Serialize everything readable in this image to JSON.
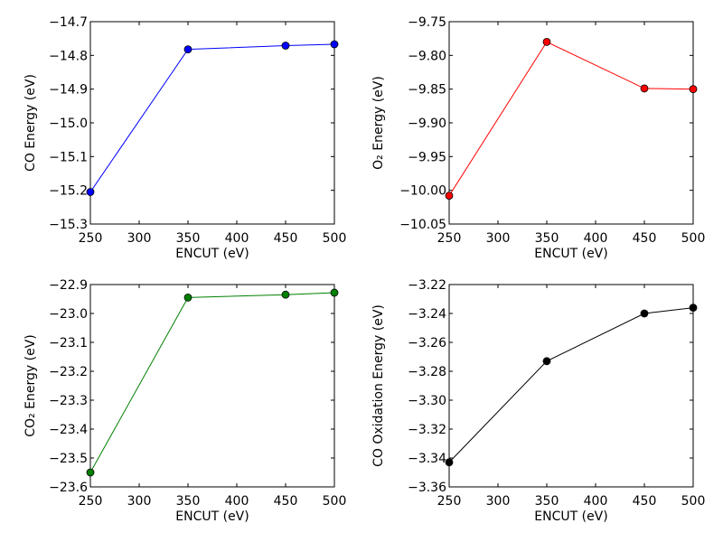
{
  "figure": {
    "background": "#ffffff"
  },
  "chart_data": [
    {
      "type": "line",
      "ylabel": "CO Energy (eV)",
      "xlabel": "ENCUT (eV)",
      "color": "#0000ff",
      "x": [
        250,
        350,
        450,
        500
      ],
      "y": [
        -15.205,
        -14.782,
        -14.771,
        -14.767
      ],
      "xlim": [
        250,
        500
      ],
      "ylim": [
        -15.3,
        -14.7
      ],
      "xticks": [
        "250",
        "300",
        "350",
        "400",
        "450",
        "500"
      ],
      "yticks": [
        "−15.3",
        "−15.2",
        "−15.1",
        "−15.0",
        "−14.9",
        "−14.8",
        "−14.7"
      ],
      "grid": false
    },
    {
      "type": "line",
      "ylabel": "O₂ Energy (eV)",
      "xlabel": "ENCUT (eV)",
      "color": "#ff0000",
      "x": [
        250,
        350,
        450,
        500
      ],
      "y": [
        -10.008,
        -9.78,
        -9.849,
        -9.85
      ],
      "xlim": [
        250,
        500
      ],
      "ylim": [
        -10.05,
        -9.75
      ],
      "xticks": [
        "250",
        "300",
        "350",
        "400",
        "450",
        "500"
      ],
      "yticks": [
        "−10.05",
        "−10.00",
        "−9.95",
        "−9.90",
        "−9.85",
        "−9.80",
        "−9.75"
      ],
      "grid": false
    },
    {
      "type": "line",
      "ylabel": "CO₂ Energy (eV)",
      "xlabel": "ENCUT (eV)",
      "color": "#008000",
      "x": [
        250,
        350,
        450,
        500
      ],
      "y": [
        -23.55,
        -22.945,
        -22.935,
        -22.928
      ],
      "xlim": [
        250,
        500
      ],
      "ylim": [
        -23.6,
        -22.9
      ],
      "xticks": [
        "250",
        "300",
        "350",
        "400",
        "450",
        "500"
      ],
      "yticks": [
        "−23.6",
        "−23.5",
        "−23.4",
        "−23.3",
        "−23.2",
        "−23.1",
        "−23.0",
        "−22.9"
      ],
      "grid": false
    },
    {
      "type": "line",
      "ylabel": "CO Oxidation Energy (eV)",
      "xlabel": "ENCUT (eV)",
      "color": "#000000",
      "x": [
        250,
        350,
        450,
        500
      ],
      "y": [
        -3.343,
        -3.273,
        -3.24,
        -3.236
      ],
      "xlim": [
        250,
        500
      ],
      "ylim": [
        -3.36,
        -3.22
      ],
      "xticks": [
        "250",
        "300",
        "350",
        "400",
        "450",
        "500"
      ],
      "yticks": [
        "−3.36",
        "−3.34",
        "−3.32",
        "−3.30",
        "−3.28",
        "−3.26",
        "−3.24",
        "−3.22"
      ],
      "grid": false
    }
  ]
}
